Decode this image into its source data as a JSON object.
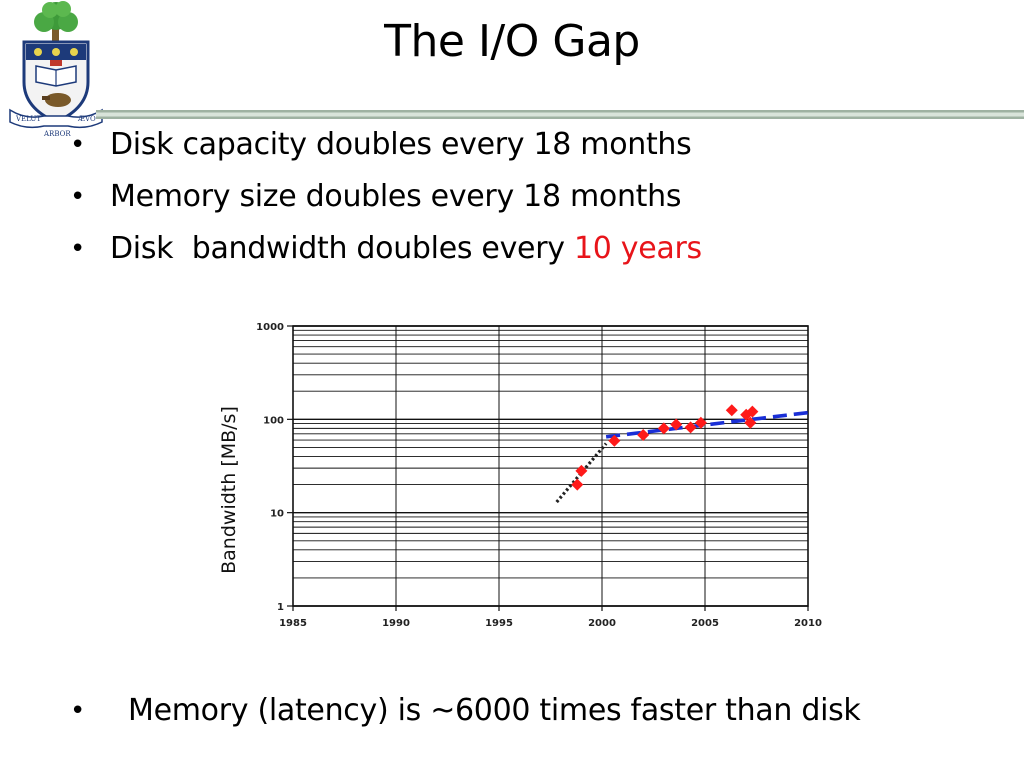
{
  "slide": {
    "title": "The I/O Gap",
    "bullets": [
      {
        "text": "Disk capacity doubles every 18 months"
      },
      {
        "text": "Memory size doubles every 18 months"
      },
      {
        "text": "Disk  bandwidth doubles every ",
        "highlight": "10 years"
      }
    ],
    "bottom_bullet": "Memory (latency) is  ~6000 times faster than disk",
    "crest": {
      "motto_left": "VELUT",
      "motto_center": "ARBOR",
      "motto_right": "ÆVO"
    },
    "colors": {
      "highlight": "#e8141a",
      "rule": "#9fb2a2",
      "rule_inner": "#d9e4da"
    }
  },
  "chart_data": {
    "type": "scatter",
    "ylabel": "Bandwidth [MB/s]",
    "xlabel": "",
    "y_scale": "log",
    "ylim": [
      1,
      1000
    ],
    "xlim": [
      1985,
      2010
    ],
    "y_ticks": [
      1,
      10,
      100,
      1000
    ],
    "y_tick_labels": [
      "1",
      "10",
      "100",
      "1000"
    ],
    "x_ticks": [
      1985,
      1990,
      1995,
      2000,
      2005,
      2010
    ],
    "x_tick_labels": [
      "1985",
      "1990",
      "1995",
      "2000",
      "2005",
      "2010"
    ],
    "grid": true,
    "series": [
      {
        "kind": "points",
        "color": "#ff1a1a",
        "marker": "diamond",
        "points": [
          [
            1998.8,
            20
          ],
          [
            1999.0,
            28
          ],
          [
            2000.6,
            59
          ],
          [
            2002.0,
            68
          ],
          [
            2003.0,
            80
          ],
          [
            2003.6,
            88
          ],
          [
            2004.3,
            82
          ],
          [
            2004.8,
            92
          ],
          [
            2006.3,
            125
          ],
          [
            2007.0,
            112
          ],
          [
            2007.2,
            92
          ],
          [
            2007.3,
            121
          ]
        ]
      },
      {
        "kind": "trend",
        "style": "dotted",
        "color": "#222222",
        "points": [
          [
            1997.8,
            13
          ],
          [
            2000.2,
            55
          ]
        ]
      },
      {
        "kind": "trend",
        "style": "dashed",
        "color": "#1a2fd6",
        "points": [
          [
            2000.2,
            65
          ],
          [
            2010,
            118
          ]
        ]
      }
    ]
  }
}
